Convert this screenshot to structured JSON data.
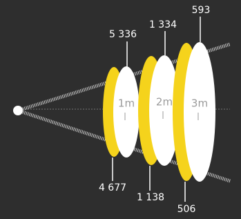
{
  "discs": [
    {
      "label": "1m",
      "top": "5 336",
      "bottom": "4 677"
    },
    {
      "label": "2m",
      "top": "1 334",
      "bottom": "1 138"
    },
    {
      "label": "3m",
      "top": "593",
      "bottom": "506"
    }
  ]
}
